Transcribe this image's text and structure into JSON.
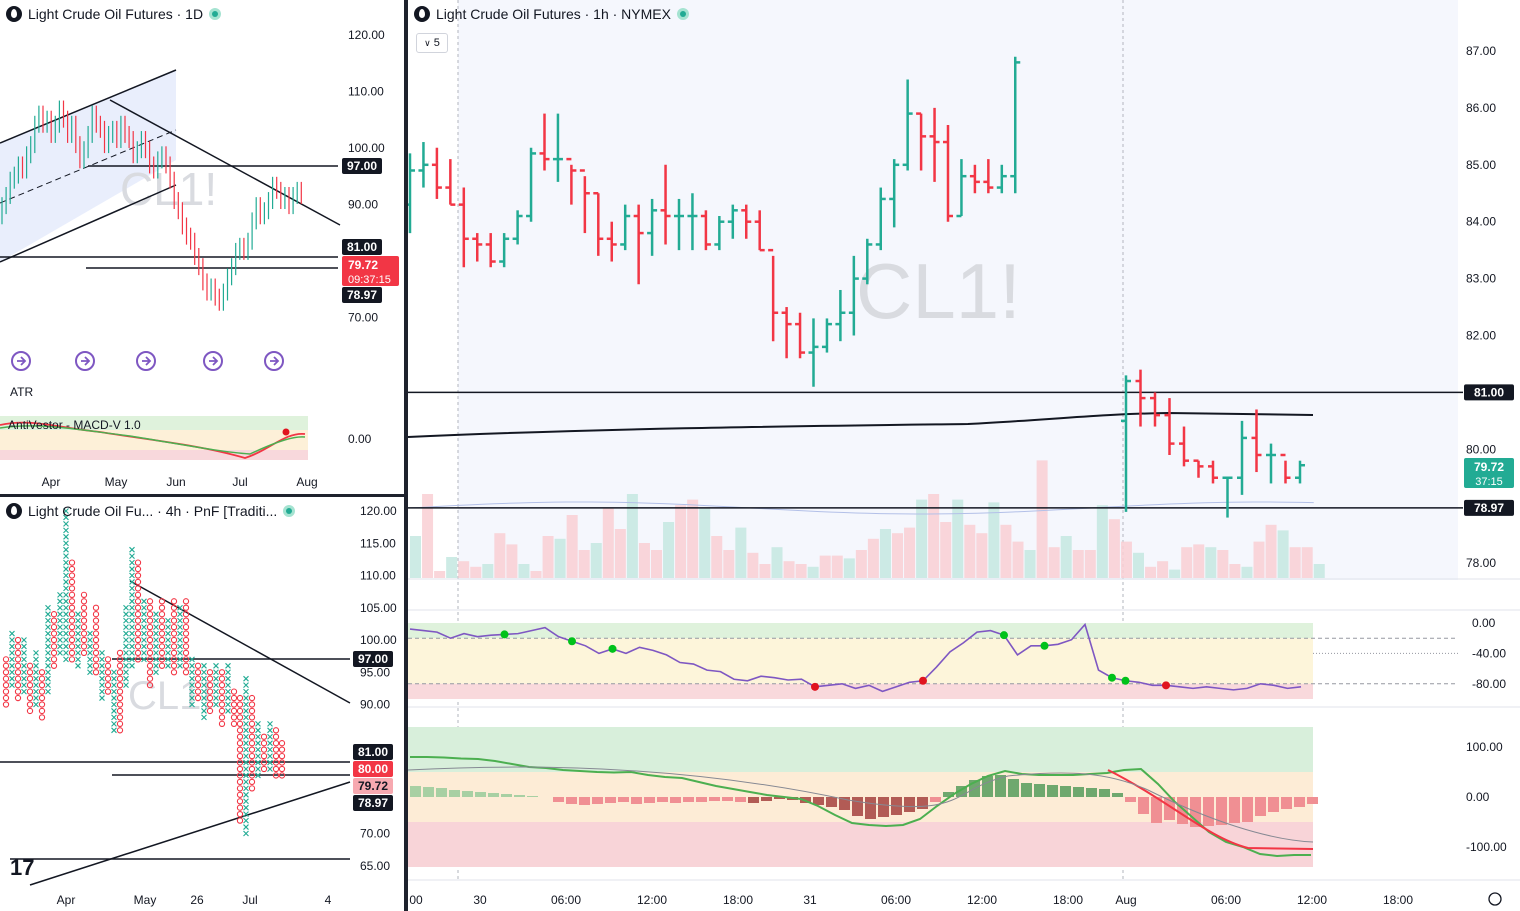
{
  "panels": {
    "top_left": {
      "title": "Light Crude Oil Futures · 1D",
      "watermark": "CL1!",
      "indicators": {
        "atr": "ATR",
        "macd": "AntiVestor - MACD-V 1.0"
      },
      "y_ticks": [
        "120.00",
        "110.00",
        "100.00",
        "90.00",
        "70.00"
      ],
      "macd_tick": "0.00",
      "x_ticks": [
        "Apr",
        "May",
        "Jun",
        "Jul",
        "Aug"
      ],
      "price_badges": {
        "level_97": "97.00",
        "level_81": "81.00",
        "last": "79.72",
        "countdown": "09:37:15",
        "level_7897": "78.97"
      }
    },
    "bottom_left": {
      "title": "Light Crude Oil Fu... · 4h · PnF [Traditi...",
      "watermark": "CL1!",
      "y_ticks": [
        "120.00",
        "115.00",
        "110.00",
        "105.00",
        "100.00",
        "95.00",
        "90.00",
        "70.00",
        "65.00"
      ],
      "x_ticks": [
        "Apr",
        "May",
        "26",
        "Jul",
        "4"
      ],
      "price_badges": {
        "level_97": "97.00",
        "level_81": "81.00",
        "level_80": "80.00",
        "last": "79.72",
        "level_7897": "78.97"
      }
    },
    "right": {
      "title": "Light Crude Oil Futures · 1h · NYMEX",
      "interval": "5",
      "watermark": "CL1!",
      "y_ticks": [
        "87.00",
        "86.00",
        "85.00",
        "84.00",
        "83.00",
        "82.00",
        "80.00",
        "78.00"
      ],
      "osc_ticks": [
        "0.00",
        "-40.00",
        "-80.00"
      ],
      "macd_ticks": [
        "100.00",
        "0.00",
        "-100.00"
      ],
      "x_ticks": [
        "00",
        "30",
        "06:00",
        "12:00",
        "18:00",
        "31",
        "06:00",
        "12:00",
        "18:00",
        "Aug",
        "06:00",
        "12:00",
        "18:00"
      ],
      "price_badges": {
        "level_81": "81.00",
        "last": "79.72",
        "countdown": "37:15",
        "level_7897": "78.97"
      }
    }
  },
  "colors": {
    "up": "#22ab94",
    "down": "#f23645",
    "badge_dark": "#131722",
    "line": "#131722",
    "purple": "#7e57c2"
  },
  "chart_data": {
    "type": "ohlc",
    "instrument": "CL1!",
    "timeframe": "1h",
    "exchange": "NYMEX",
    "last_price": 79.72,
    "horizontal_levels": [
      81.0,
      78.97
    ],
    "ylim": [
      77.7,
      87.3
    ],
    "bars": [
      [
        84.3,
        85.2,
        83.8,
        84.9
      ],
      [
        84.9,
        85.4,
        84.6,
        85.0
      ],
      [
        85.0,
        85.3,
        84.4,
        84.6
      ],
      [
        84.6,
        85.1,
        84.3,
        84.3
      ],
      [
        84.3,
        84.6,
        83.2,
        83.7
      ],
      [
        83.7,
        83.8,
        83.3,
        83.6
      ],
      [
        83.6,
        83.8,
        83.2,
        83.3
      ],
      [
        83.3,
        83.8,
        83.2,
        83.7
      ],
      [
        83.7,
        84.2,
        83.6,
        84.1
      ],
      [
        84.1,
        85.3,
        84.0,
        85.2
      ],
      [
        85.2,
        85.9,
        84.9,
        85.1
      ],
      [
        85.1,
        85.9,
        84.7,
        85.1
      ],
      [
        85.1,
        85.0,
        84.3,
        84.9
      ],
      [
        84.9,
        84.8,
        83.8,
        84.5
      ],
      [
        84.5,
        84.5,
        83.4,
        83.7
      ],
      [
        83.7,
        84.0,
        83.3,
        83.6
      ],
      [
        83.6,
        84.3,
        83.5,
        84.1
      ],
      [
        84.1,
        84.3,
        82.9,
        83.8
      ],
      [
        83.8,
        84.4,
        83.4,
        84.2
      ],
      [
        84.2,
        85.0,
        83.6,
        84.1
      ],
      [
        84.1,
        84.4,
        83.5,
        84.1
      ],
      [
        84.1,
        84.5,
        83.5,
        84.1
      ],
      [
        84.1,
        84.2,
        83.5,
        83.6
      ],
      [
        83.6,
        84.1,
        83.5,
        84.0
      ],
      [
        84.0,
        84.3,
        83.7,
        84.2
      ],
      [
        84.2,
        84.3,
        83.7,
        84.0
      ],
      [
        84.0,
        84.2,
        83.5,
        83.5
      ],
      [
        83.5,
        83.4,
        81.9,
        82.4
      ],
      [
        82.4,
        82.5,
        81.6,
        82.2
      ],
      [
        82.2,
        82.4,
        81.6,
        81.7
      ],
      [
        81.7,
        82.3,
        81.1,
        81.8
      ],
      [
        81.8,
        82.3,
        81.7,
        82.2
      ],
      [
        82.2,
        82.8,
        81.9,
        82.4
      ],
      [
        82.4,
        83.4,
        82.0,
        83.0
      ],
      [
        83.0,
        83.7,
        82.9,
        83.6
      ],
      [
        83.6,
        84.6,
        83.5,
        84.4
      ],
      [
        84.4,
        85.1,
        83.9,
        85.0
      ],
      [
        85.0,
        86.5,
        84.9,
        85.9
      ],
      [
        85.9,
        85.9,
        84.9,
        85.5
      ],
      [
        85.5,
        86.0,
        84.7,
        85.4
      ],
      [
        85.4,
        85.7,
        84.0,
        84.1
      ],
      [
        84.1,
        85.1,
        84.1,
        84.8
      ],
      [
        84.8,
        85.0,
        84.5,
        84.7
      ],
      [
        84.7,
        85.1,
        84.5,
        84.6
      ],
      [
        84.6,
        85.0,
        84.5,
        84.8
      ],
      [
        84.8,
        86.9,
        84.5,
        86.8
      ],
      [
        80.5,
        81.3,
        78.9,
        81.2
      ],
      [
        81.2,
        81.4,
        80.4,
        80.9
      ],
      [
        80.9,
        81.0,
        80.4,
        80.6
      ],
      [
        80.6,
        80.9,
        79.9,
        80.1
      ],
      [
        80.1,
        80.4,
        79.7,
        79.8
      ],
      [
        79.8,
        79.8,
        79.5,
        79.7
      ],
      [
        79.7,
        79.8,
        79.4,
        79.5
      ],
      [
        79.5,
        79.5,
        78.8,
        79.5
      ],
      [
        79.5,
        80.5,
        79.2,
        80.2
      ],
      [
        80.2,
        80.7,
        79.6,
        79.9
      ],
      [
        79.9,
        80.1,
        79.4,
        79.9
      ],
      [
        79.9,
        79.8,
        79.4,
        79.5
      ],
      [
        79.5,
        79.8,
        79.4,
        79.72
      ]
    ],
    "volume": [
      0.3,
      0.6,
      0.05,
      0.15,
      0.12,
      0.08,
      0.1,
      0.32,
      0.24,
      0.1,
      0.05,
      0.3,
      0.28,
      0.45,
      0.2,
      0.25,
      0.5,
      0.35,
      0.6,
      0.25,
      0.2,
      0.4,
      0.52,
      0.56,
      0.5,
      0.3,
      0.2,
      0.36,
      0.18,
      0.1,
      0.22,
      0.12,
      0.1,
      0.08,
      0.16,
      0.16,
      0.14,
      0.2,
      0.28,
      0.35,
      0.32,
      0.36,
      0.56,
      0.6,
      0.4,
      0.56,
      0.38,
      0.32,
      0.54,
      0.38,
      0.26,
      0.2,
      0.84,
      0.22,
      0.3,
      0.2,
      0.2,
      0.52,
      0.42,
      0.26,
      0.18,
      0.08,
      0.12,
      0.06,
      0.22,
      0.24,
      0.22,
      0.2,
      0.1,
      0.08,
      0.26,
      0.38,
      0.34,
      0.22,
      0.22,
      0.1
    ],
    "oscillator": [
      -8,
      -10,
      -12,
      -20,
      -14,
      -18,
      -16,
      -15,
      -14,
      -10,
      -6,
      -18,
      -24,
      -30,
      -40,
      -34,
      -40,
      -32,
      -36,
      -42,
      -52,
      -54,
      -62,
      -64,
      -74,
      -76,
      -70,
      -72,
      -75,
      -74,
      -84,
      -82,
      -80,
      -86,
      -82,
      -90,
      -84,
      -78,
      -76,
      -58,
      -38,
      -26,
      -12,
      -10,
      -16,
      -42,
      -30,
      -30,
      -28,
      -22,
      -2,
      -62,
      -72,
      -76,
      -78,
      -82,
      -82,
      -84,
      -86,
      -84,
      -86,
      -88,
      -86,
      -80,
      -82,
      -86,
      -84
    ],
    "macd_hist": [
      22,
      20,
      18,
      14,
      12,
      10,
      8,
      6,
      4,
      2,
      0,
      -10,
      -14,
      -16,
      -14,
      -12,
      -10,
      -14,
      -12,
      -10,
      -12,
      -10,
      -10,
      -8,
      -8,
      -10,
      -12,
      -8,
      -4,
      -6,
      -12,
      -16,
      -20,
      -26,
      -38,
      -44,
      -40,
      -36,
      -30,
      -24,
      -10,
      10,
      22,
      34,
      42,
      44,
      36,
      28,
      26,
      24,
      22,
      20,
      18,
      16,
      8,
      -10,
      -34,
      -52,
      -46,
      -54,
      -60,
      -58,
      -56,
      -52,
      -50,
      -38,
      -30,
      -24,
      -20,
      -14
    ],
    "macd_line": [
      80,
      80,
      79,
      77,
      76,
      72,
      66,
      60,
      58,
      54,
      52,
      50,
      49,
      50,
      44,
      40,
      38,
      30,
      22,
      16,
      10,
      4,
      0,
      -4,
      -18,
      -36,
      -52,
      -56,
      -58,
      -56,
      -44,
      -18,
      6,
      26,
      42,
      52,
      46,
      44,
      44,
      44,
      46,
      48,
      54,
      56,
      26,
      -10,
      -40,
      -70,
      -90,
      -100,
      -114,
      -118,
      -116,
      -116
    ]
  }
}
